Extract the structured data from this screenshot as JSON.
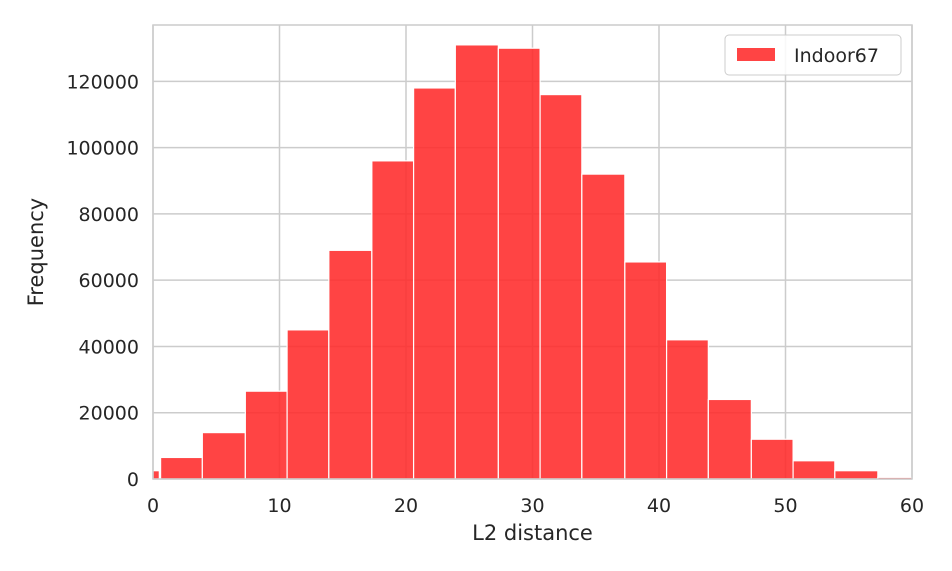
{
  "chart_data": {
    "type": "bar",
    "title": "",
    "xlabel": "L2 distance",
    "ylabel": "Frequency",
    "xlim": [
      0,
      60
    ],
    "ylim": [
      0,
      137000
    ],
    "x_ticks": [
      0,
      10,
      20,
      30,
      40,
      50,
      60
    ],
    "x_tick_labels": [
      "0",
      "10",
      "20",
      "30",
      "40",
      "50",
      "60"
    ],
    "y_ticks": [
      0,
      20000,
      40000,
      60000,
      80000,
      100000,
      120000
    ],
    "y_tick_labels": [
      "0",
      "20000",
      "40000",
      "60000",
      "80000",
      "100000",
      "120000"
    ],
    "grid": true,
    "legend_position": "top-right",
    "bar_color": "#ff2a2a",
    "bar_alpha": 0.88,
    "series": [
      {
        "name": "Indoor67",
        "bins": [
          {
            "x0": 0.0,
            "x1": 0.5,
            "value": 2500
          },
          {
            "x0": 0.6,
            "x1": 3.9,
            "value": 6500
          },
          {
            "x0": 3.9,
            "x1": 7.3,
            "value": 14000
          },
          {
            "x0": 7.3,
            "x1": 10.6,
            "value": 26500
          },
          {
            "x0": 10.6,
            "x1": 13.9,
            "value": 45000
          },
          {
            "x0": 13.9,
            "x1": 17.3,
            "value": 69000
          },
          {
            "x0": 17.3,
            "x1": 20.6,
            "value": 96000
          },
          {
            "x0": 20.6,
            "x1": 23.9,
            "value": 118000
          },
          {
            "x0": 23.9,
            "x1": 27.3,
            "value": 131000
          },
          {
            "x0": 27.3,
            "x1": 30.6,
            "value": 130000
          },
          {
            "x0": 30.6,
            "x1": 33.9,
            "value": 116000
          },
          {
            "x0": 33.9,
            "x1": 37.3,
            "value": 92000
          },
          {
            "x0": 37.3,
            "x1": 40.6,
            "value": 65500
          },
          {
            "x0": 40.6,
            "x1": 43.9,
            "value": 42000
          },
          {
            "x0": 43.9,
            "x1": 47.3,
            "value": 24000
          },
          {
            "x0": 47.3,
            "x1": 50.6,
            "value": 12000
          },
          {
            "x0": 50.6,
            "x1": 53.9,
            "value": 5500
          },
          {
            "x0": 53.9,
            "x1": 57.3,
            "value": 2500
          },
          {
            "x0": 57.3,
            "x1": 60.0,
            "value": 500
          }
        ]
      }
    ]
  }
}
